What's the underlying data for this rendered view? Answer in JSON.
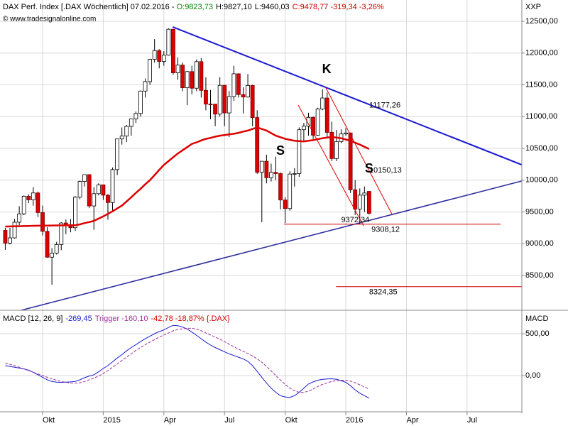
{
  "header": {
    "title": "DAX Perf. Index [.DAX  Wöchentlich] 07.02.2016 - ",
    "open": "O:9823,73",
    "high": "H:9827,10",
    "low": "L:9460,03",
    "close": "C:9478,77 -319,34 -3,26%",
    "watermark": "© www.tradesignalonline.com",
    "unit": "XXP"
  },
  "chart_data": [
    {
      "type": "candlestick",
      "xlim": [
        -1.13,
        110.74
      ],
      "ylim": [
        7953,
        12835
      ],
      "grid": true,
      "yticks": [
        {
          "value": 8500,
          "label": "8500,00"
        },
        {
          "value": 9000,
          "label": "9000,00"
        },
        {
          "value": 9500,
          "label": "9500,00"
        },
        {
          "value": 10000,
          "label": "10000,00"
        },
        {
          "value": 10500,
          "label": "10500,00"
        },
        {
          "value": 11000,
          "label": "11000,00"
        },
        {
          "value": 11500,
          "label": "11500,00"
        },
        {
          "value": 12000,
          "label": "12000,00"
        },
        {
          "value": 12500,
          "label": "12500,00"
        }
      ],
      "up_color": "#ffffff",
      "down_color": "#dd0000",
      "candles": {
        "open": [
          9210,
          9009,
          9092,
          9339,
          9470,
          9747,
          9691,
          9799,
          9490,
          9195,
          8788,
          8850,
          8988,
          9326,
          9291,
          9252,
          9732,
          9980,
          10087,
          9594,
          9787,
          9927,
          9764,
          9648,
          10167,
          10649,
          10694,
          10846,
          10963,
          11050,
          11402,
          11551,
          11901,
          12040,
          11868,
          11967,
          12375,
          11689,
          11811,
          11454,
          11709,
          11447,
          11865,
          11413,
          11197,
          11196,
          11040,
          11492,
          11058,
          11316,
          11674,
          11347,
          11308,
          11490,
          10985,
          10124,
          10298,
          10038,
          10123,
          10104,
          9688,
          9553,
          10096,
          10104,
          10794,
          10850,
          10988,
          10708,
          11119,
          11293,
          10752,
          10340,
          10608,
          10727,
          10743,
          9849,
          9545,
          9764,
          9823.73
        ],
        "high": [
          9250,
          9250,
          9390,
          9590,
          9760,
          9780,
          9890,
          9820,
          9600,
          9260,
          8930,
          9030,
          9340,
          9380,
          9390,
          9750,
          9990,
          10090,
          10093,
          9890,
          9950,
          9930,
          9780,
          10200,
          10650,
          10830,
          10870,
          10970,
          11080,
          11410,
          11600,
          11910,
          12220,
          12060,
          12030,
          12390,
          12380,
          11930,
          11850,
          11720,
          11800,
          11900,
          11920,
          11620,
          11420,
          11200,
          11620,
          11500,
          11400,
          11800,
          11680,
          11460,
          11670,
          11500,
          11100,
          10300,
          10400,
          10260,
          10370,
          10120,
          9730,
          10140,
          10190,
          10830,
          10900,
          11060,
          11000,
          11140,
          11430,
          11380,
          10920,
          10790,
          10800,
          10820,
          10750,
          10000,
          9870,
          9900,
          9827.1
        ],
        "low": [
          8903,
          8990,
          9080,
          9290,
          9450,
          9640,
          9600,
          9420,
          9130,
          8780,
          8355,
          8830,
          8900,
          9150,
          9180,
          9200,
          9700,
          9900,
          9560,
          9219,
          9760,
          9690,
          9380,
          9500,
          10080,
          10560,
          10600,
          10700,
          10900,
          11000,
          11300,
          11500,
          11850,
          11760,
          11800,
          11960,
          11660,
          11580,
          11400,
          11180,
          11350,
          11400,
          11300,
          11100,
          10960,
          10850,
          11000,
          10850,
          10680,
          11250,
          11300,
          11050,
          11300,
          10850,
          10100,
          9338,
          9950,
          9980,
          10000,
          9540,
          9325,
          9520,
          9900,
          10050,
          10600,
          10700,
          10650,
          10700,
          11100,
          10680,
          10300,
          10300,
          10580,
          10700,
          9800,
          9450,
          9308,
          9500,
          9460.03
        ],
        "close": [
          9009,
          9092,
          9339,
          9470,
          9747,
          9691,
          9799,
          9490,
          9195,
          8788,
          8850,
          8988,
          9326,
          9291,
          9252,
          9732,
          9980,
          10087,
          9594,
          9787,
          9927,
          9764,
          9648,
          10167,
          10649,
          10694,
          10846,
          10963,
          11050,
          11402,
          11551,
          11901,
          12040,
          11868,
          11967,
          12375,
          11689,
          11811,
          11454,
          11709,
          11447,
          11865,
          11413,
          11197,
          11196,
          11040,
          11492,
          11058,
          11316,
          11674,
          11347,
          11308,
          11490,
          10985,
          10124,
          10298,
          10038,
          10123,
          10104,
          9688,
          9553,
          10096,
          10104,
          10794,
          10850,
          10988,
          10708,
          11119,
          11293,
          10752,
          10340,
          10608,
          10727,
          10743,
          9849,
          9545,
          9764,
          9798,
          9478.77
        ]
      },
      "series": [
        {
          "color": "#dd0000",
          "values": [
            9270,
            9272,
            9274,
            9276,
            9278,
            9280,
            9282,
            9284,
            9285,
            9286,
            9287,
            9288,
            9289,
            9289,
            9290,
            9290,
            9305,
            9325,
            9340,
            9360,
            9395,
            9430,
            9470,
            9510,
            9555,
            9600,
            9665,
            9730,
            9800,
            9865,
            9935,
            10000,
            10080,
            10160,
            10240,
            10300,
            10360,
            10420,
            10470,
            10520,
            10570,
            10595,
            10625,
            10650,
            10665,
            10685,
            10700,
            10710,
            10720,
            10730,
            10745,
            10765,
            10780,
            10805,
            10830,
            10805,
            10780,
            10740,
            10700,
            10675,
            10650,
            10635,
            10620,
            10615,
            10610,
            10620,
            10630,
            10645,
            10660,
            10670,
            10680,
            10670,
            10660,
            10640,
            10620,
            10590,
            10560,
            10525,
            10490
          ]
        }
      ],
      "trendlines": [
        {
          "x": [
            35.9,
            110.7
          ],
          "y": [
            12411,
            10243
          ],
          "color": "#1a1ad0",
          "width": 2
        },
        {
          "x": [
            3.4,
            110.7
          ],
          "y": [
            7953,
            9986
          ],
          "color": "#3030a0",
          "width": 1.6
        },
        {
          "x": [
            62.8,
            76.8
          ],
          "y": [
            11182,
            9282
          ],
          "color": "#dd0000",
          "width": 1
        },
        {
          "x": [
            68.6,
            83.0
          ],
          "y": [
            11472,
            9450
          ],
          "color": "#dd0000",
          "width": 1
        }
      ],
      "hlines": [
        {
          "value": 9308.12,
          "label": "9308,12",
          "x": [
            59.8,
            106.2
          ],
          "label_x": 78.5,
          "color": "#cc0000"
        },
        {
          "value": 8324.35,
          "label": "8324,35",
          "x": [
            70.9,
            110.7
          ],
          "label_x": 78.0,
          "color": "#cc0000"
        }
      ],
      "price_labels": [
        {
          "value": 11177.26,
          "label": "11177,26",
          "x": 78.0,
          "color": "#1a1ad0"
        },
        {
          "value": 10150.13,
          "label": "10150,13",
          "x": 78.0,
          "color": "#cc0000"
        },
        {
          "value": 9372.34,
          "label": "9372,34",
          "x": 72.0,
          "color": "#4a4ad0"
        }
      ],
      "annotations": [
        {
          "text": "K",
          "x": 68.9,
          "y": 11740,
          "color": "#1a1ad0"
        },
        {
          "text": "S",
          "x": 59.0,
          "y": 10455,
          "color": "#1a1ad0"
        },
        {
          "text": "S",
          "x": 78.0,
          "y": 10176,
          "color": "#3a2ecc"
        }
      ]
    },
    {
      "type": "line",
      "legend": {
        "name": "MACD [12, 26, 9]",
        "value": "-269,45",
        "trigger": "Trigger -160,10",
        "change": "-42,78 -18,87% {.DAX}"
      },
      "axis_label": "MACD",
      "xlim": [
        -1.13,
        110.74
      ],
      "ylim": [
        -432,
        780
      ],
      "grid": true,
      "xticks": [
        {
          "value": 8,
          "label": "Okt"
        },
        {
          "value": 21,
          "label": "2015"
        },
        {
          "value": 34,
          "label": "Apr"
        },
        {
          "value": 47,
          "label": "Jul"
        },
        {
          "value": 60,
          "label": "Okt"
        },
        {
          "value": 73,
          "label": "2016"
        },
        {
          "value": 86,
          "label": "Apr"
        },
        {
          "value": 99,
          "label": "Jul"
        }
      ],
      "yticks": [
        {
          "value": 0,
          "label": "0,00"
        },
        {
          "value": 500,
          "label": "500,00"
        }
      ],
      "series": [
        {
          "color": "#1a1ad0",
          "dash": false,
          "values": [
            120,
            110,
            100,
            90,
            80,
            65,
            40,
            10,
            -20,
            -50,
            -70,
            -78,
            -80,
            -78,
            -75,
            -70,
            -50,
            -25,
            -5,
            10,
            45,
            85,
            120,
            165,
            210,
            250,
            295,
            335,
            370,
            405,
            440,
            470,
            500,
            525,
            545,
            575,
            600,
            595,
            580,
            555,
            520,
            480,
            440,
            400,
            365,
            335,
            310,
            285,
            260,
            240,
            220,
            200,
            170,
            120,
            50,
            -20,
            -90,
            -150,
            -200,
            -240,
            -255,
            -260,
            -240,
            -200,
            -150,
            -100,
            -75,
            -55,
            -45,
            -40,
            -38,
            -45,
            -60,
            -80,
            -120,
            -170,
            -210,
            -240,
            -269.45
          ]
        },
        {
          "color": "#a0309a",
          "dash": true,
          "values": [
            150,
            135,
            120,
            100,
            80,
            60,
            40,
            20,
            0,
            -20,
            -40,
            -55,
            -70,
            -80,
            -88,
            -90,
            -85,
            -70,
            -50,
            -30,
            -5,
            25,
            60,
            100,
            140,
            180,
            220,
            260,
            300,
            335,
            370,
            400,
            430,
            460,
            485,
            510,
            535,
            550,
            560,
            565,
            565,
            555,
            535,
            510,
            485,
            460,
            435,
            405,
            375,
            345,
            315,
            290,
            265,
            235,
            200,
            160,
            110,
            55,
            0,
            -55,
            -105,
            -150,
            -180,
            -200,
            -200,
            -185,
            -160,
            -130,
            -105,
            -85,
            -70,
            -60,
            -55,
            -55,
            -65,
            -85,
            -110,
            -135,
            -160.1
          ]
        }
      ]
    }
  ]
}
